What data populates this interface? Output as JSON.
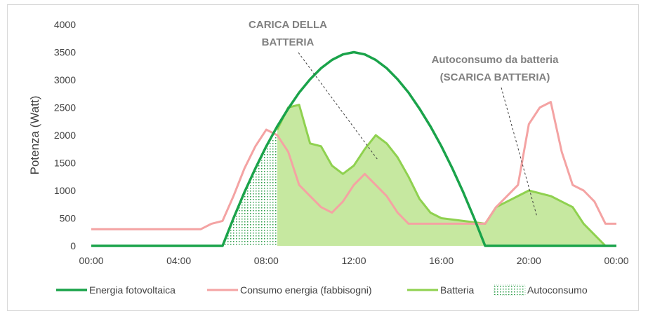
{
  "chart_data": {
    "type": "area",
    "ylabel": "Potenza (Watt)",
    "ylim": [
      0,
      4000
    ],
    "y_ticks": [
      "0",
      "500",
      "1000",
      "1500",
      "2000",
      "2500",
      "3000",
      "3500",
      "4000"
    ],
    "x_ticks": [
      "00:00",
      "04:00",
      "08:00",
      "12:00",
      "16:00",
      "20:00",
      "00:00"
    ],
    "xlim_hours": [
      0,
      24
    ],
    "grid": false,
    "legend_position": "bottom",
    "colors": {
      "pv": "#1aa34a",
      "consumption": "#f4a3a3",
      "battery": "#8fd14f",
      "battery_fill": "#c6e8a0",
      "self_consumption": "#2e9e4a",
      "annotation": "#808080",
      "leader": "#404040"
    },
    "series": [
      {
        "name": "Energia fotovoltaica",
        "x": [
          0,
          6,
          6.5,
          7,
          7.5,
          8,
          8.5,
          9,
          9.5,
          10,
          10.5,
          11,
          11.5,
          12,
          12.5,
          13,
          13.5,
          14,
          14.5,
          15,
          15.5,
          16,
          16.5,
          17,
          17.5,
          18,
          24
        ],
        "y": [
          0,
          0,
          500,
          970,
          1400,
          1800,
          2160,
          2480,
          2770,
          3010,
          3210,
          3360,
          3460,
          3500,
          3460,
          3360,
          3210,
          3010,
          2770,
          2480,
          2160,
          1800,
          1400,
          970,
          500,
          0,
          0
        ]
      },
      {
        "name": "Consumo energia (fabbisogni)",
        "x": [
          0,
          5,
          5.5,
          6,
          6.5,
          7,
          7.5,
          8,
          8.5,
          9,
          9.5,
          10,
          10.5,
          11,
          11.5,
          12,
          12.5,
          13,
          13.5,
          14,
          14.5,
          15,
          16,
          17,
          18,
          18.5,
          19,
          19.5,
          20,
          20.5,
          21,
          21.5,
          22,
          22.5,
          23,
          23.5,
          24
        ],
        "y": [
          300,
          300,
          400,
          450,
          900,
          1400,
          1800,
          2100,
          2000,
          1700,
          1100,
          900,
          700,
          600,
          800,
          1100,
          1300,
          1100,
          900,
          600,
          400,
          400,
          400,
          400,
          400,
          700,
          900,
          1100,
          2200,
          2500,
          2600,
          1700,
          1100,
          1000,
          800,
          400,
          400
        ]
      },
      {
        "name": "Batteria",
        "x": [
          8.5,
          9,
          9.5,
          10,
          10.5,
          11,
          11.5,
          12,
          12.5,
          13,
          13.5,
          14,
          14.5,
          15,
          15.5,
          16,
          17,
          18,
          18.5,
          19,
          19.5,
          20,
          20.5,
          21,
          21.5,
          22,
          22.5,
          23,
          23.5,
          24
        ],
        "y": [
          2100,
          2500,
          2550,
          1850,
          1800,
          1450,
          1300,
          1450,
          1750,
          2000,
          1850,
          1600,
          1250,
          850,
          600,
          500,
          450,
          400,
          700,
          800,
          900,
          1000,
          950,
          900,
          800,
          700,
          400,
          200,
          0,
          0
        ]
      },
      {
        "name": "Autoconsumo",
        "x": [
          6,
          6.5,
          7,
          7.5,
          8,
          8.5,
          9,
          9.5,
          10,
          10.5,
          11,
          11.5,
          12,
          12.5,
          13,
          13.5,
          14,
          14.5,
          15,
          16,
          17,
          18
        ],
        "y": [
          0,
          500,
          970,
          1400,
          1800,
          2000,
          1700,
          1100,
          900,
          700,
          600,
          800,
          1100,
          1300,
          1100,
          900,
          600,
          400,
          400,
          400,
          400,
          0
        ]
      }
    ],
    "annotations": [
      {
        "lines": [
          "CARICA DELLA",
          "BATTERIA"
        ]
      },
      {
        "lines": [
          "Autoconsumo da batteria",
          "(SCARICA BATTERIA)"
        ]
      }
    ]
  }
}
